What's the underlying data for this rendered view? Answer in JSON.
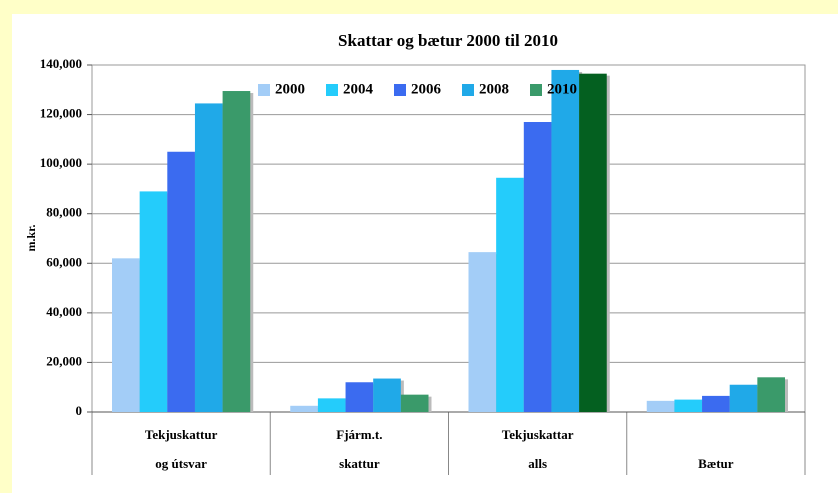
{
  "chart_data": {
    "type": "bar",
    "title": "Skattar og bætur 2000 til 2010",
    "y_label": "m.kr.",
    "categories": [
      [
        "Tekjuskattur",
        "og útsvar"
      ],
      [
        "Fjárm.t.",
        "skattur"
      ],
      [
        "Tekjuskattar",
        "alls"
      ],
      [
        "Bætur"
      ]
    ],
    "series": [
      {
        "name": "2000",
        "color": "#a3cdf7",
        "values": [
          62000,
          2500,
          64500,
          4500
        ]
      },
      {
        "name": "2004",
        "color": "#24ccfb",
        "values": [
          89000,
          5500,
          94500,
          5000
        ]
      },
      {
        "name": "2006",
        "color": "#3b6bf0",
        "values": [
          105000,
          12000,
          117000,
          6500
        ]
      },
      {
        "name": "2008",
        "color": "#20a9e8",
        "values": [
          124500,
          13500,
          138000,
          11000
        ]
      },
      {
        "name": "2010",
        "color": "#3a9a6a",
        "colors": [
          "#3a9a6a",
          "#3a9a6a",
          "#046020",
          "#3a9a6a"
        ],
        "values": [
          129500,
          7000,
          136500,
          14000
        ]
      }
    ],
    "ylim": [
      0,
      140000
    ],
    "yticks": [
      0,
      {
        "value": 20000,
        "label": "20,000"
      },
      {
        "value": 40000,
        "label": "40,000"
      },
      {
        "value": 60000,
        "label": "60,000"
      },
      {
        "value": 80000,
        "label": "80,000"
      },
      {
        "value": 100000,
        "label": "100,000"
      },
      {
        "value": 120000,
        "label": "120,000"
      },
      {
        "value": 140000,
        "label": "140,000"
      }
    ],
    "grid": true,
    "legend": "top"
  }
}
